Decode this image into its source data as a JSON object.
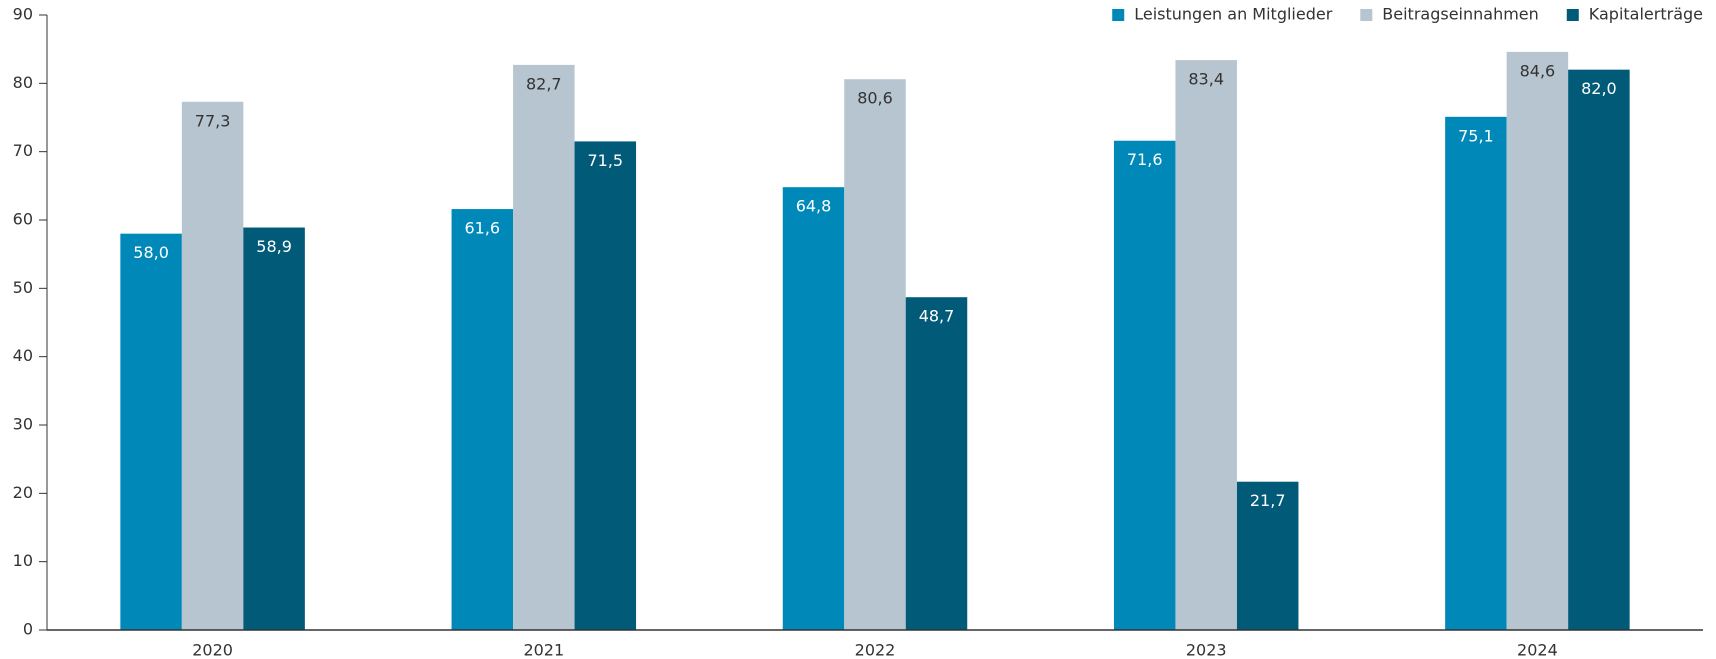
{
  "chart_data": {
    "type": "bar",
    "categories": [
      "2020",
      "2021",
      "2022",
      "2023",
      "2024"
    ],
    "series": [
      {
        "name": "Leistungen an Mitglieder",
        "color": "#0089b8",
        "values": [
          58.0,
          61.6,
          64.8,
          71.6,
          75.1
        ],
        "value_labels": [
          "58,0",
          "61,6",
          "64,8",
          "71,6",
          "75,1"
        ]
      },
      {
        "name": "Beitragseinnahmen",
        "color": "#b6c5cf",
        "values": [
          77.3,
          82.7,
          80.6,
          83.4,
          84.6
        ],
        "value_labels": [
          "77,3",
          "82,7",
          "80,6",
          "83,4",
          "84,6"
        ]
      },
      {
        "name": "Kapitalerträge",
        "color": "#005a78",
        "values": [
          58.9,
          71.5,
          48.7,
          21.7,
          82.0
        ],
        "value_labels": [
          "58,9",
          "71,5",
          "48,7",
          "21,7",
          "82,0"
        ]
      }
    ],
    "ylim": [
      0,
      90
    ],
    "yticks": [
      0,
      10,
      20,
      30,
      40,
      50,
      60,
      70,
      80,
      90
    ],
    "grid": false,
    "legend": "top-right"
  }
}
